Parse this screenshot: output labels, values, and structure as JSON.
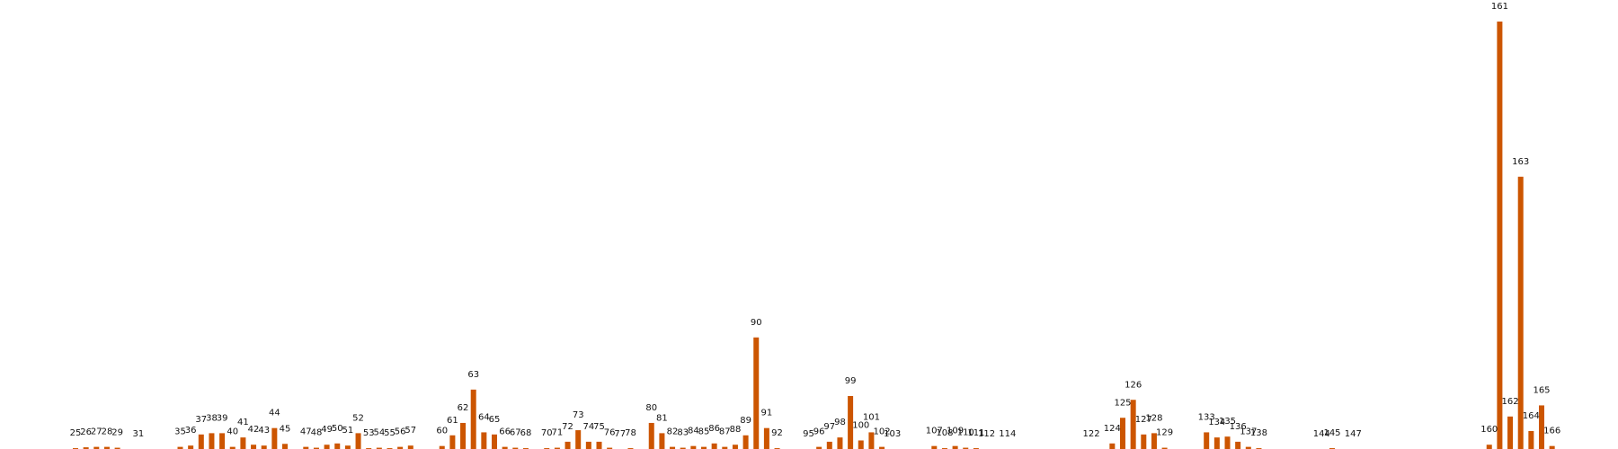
{
  "chart_data": {
    "type": "bar",
    "title": "",
    "xlabel": "",
    "ylabel": "",
    "ylim": [
      0,
      1
    ],
    "grid": false,
    "axes_visible": false,
    "bar_color": "#cc5500",
    "points": [
      {
        "x": 25,
        "label": "25",
        "value": 0.002
      },
      {
        "x": 26,
        "label": "26",
        "value": 0.004
      },
      {
        "x": 27,
        "label": "27",
        "value": 0.005
      },
      {
        "x": 28,
        "label": "28",
        "value": 0.005
      },
      {
        "x": 29,
        "label": "29",
        "value": 0.003
      },
      {
        "x": 31,
        "label": "31",
        "value": 0.0
      },
      {
        "x": 35,
        "label": "35",
        "value": 0.005
      },
      {
        "x": 36,
        "label": "36",
        "value": 0.008
      },
      {
        "x": 37,
        "label": "37",
        "value": 0.034
      },
      {
        "x": 38,
        "label": "38",
        "value": 0.037
      },
      {
        "x": 39,
        "label": "39",
        "value": 0.037
      },
      {
        "x": 40,
        "label": "40",
        "value": 0.005
      },
      {
        "x": 41,
        "label": "41",
        "value": 0.027
      },
      {
        "x": 42,
        "label": "42",
        "value": 0.01
      },
      {
        "x": 43,
        "label": "43",
        "value": 0.008
      },
      {
        "x": 44,
        "label": "44",
        "value": 0.049
      },
      {
        "x": 45,
        "label": "45",
        "value": 0.012
      },
      {
        "x": 47,
        "label": "47",
        "value": 0.005
      },
      {
        "x": 48,
        "label": "48",
        "value": 0.003
      },
      {
        "x": 49,
        "label": "49",
        "value": 0.01
      },
      {
        "x": 50,
        "label": "50",
        "value": 0.013
      },
      {
        "x": 51,
        "label": "51",
        "value": 0.008
      },
      {
        "x": 52,
        "label": "52",
        "value": 0.037
      },
      {
        "x": 53,
        "label": "53",
        "value": 0.002
      },
      {
        "x": 54,
        "label": "54",
        "value": 0.003
      },
      {
        "x": 55,
        "label": "55",
        "value": 0.002
      },
      {
        "x": 56,
        "label": "56",
        "value": 0.005
      },
      {
        "x": 57,
        "label": "57",
        "value": 0.008
      },
      {
        "x": 60,
        "label": "60",
        "value": 0.007
      },
      {
        "x": 61,
        "label": "61",
        "value": 0.032
      },
      {
        "x": 62,
        "label": "62",
        "value": 0.061
      },
      {
        "x": 63,
        "label": "63",
        "value": 0.139
      },
      {
        "x": 64,
        "label": "64",
        "value": 0.039
      },
      {
        "x": 65,
        "label": "65",
        "value": 0.034
      },
      {
        "x": 66,
        "label": "66",
        "value": 0.005
      },
      {
        "x": 67,
        "label": "67",
        "value": 0.003
      },
      {
        "x": 68,
        "label": "68",
        "value": 0.002
      },
      {
        "x": 70,
        "label": "70",
        "value": 0.002
      },
      {
        "x": 71,
        "label": "71",
        "value": 0.003
      },
      {
        "x": 72,
        "label": "72",
        "value": 0.017
      },
      {
        "x": 73,
        "label": "73",
        "value": 0.044
      },
      {
        "x": 74,
        "label": "74",
        "value": 0.017
      },
      {
        "x": 75,
        "label": "75",
        "value": 0.017
      },
      {
        "x": 76,
        "label": "76",
        "value": 0.003
      },
      {
        "x": 77,
        "label": "77",
        "value": 0.0
      },
      {
        "x": 78,
        "label": "78",
        "value": 0.002
      },
      {
        "x": 80,
        "label": "80",
        "value": 0.061
      },
      {
        "x": 81,
        "label": "81",
        "value": 0.037
      },
      {
        "x": 82,
        "label": "82",
        "value": 0.005
      },
      {
        "x": 83,
        "label": "83",
        "value": 0.003
      },
      {
        "x": 84,
        "label": "84",
        "value": 0.007
      },
      {
        "x": 85,
        "label": "85",
        "value": 0.005
      },
      {
        "x": 86,
        "label": "86",
        "value": 0.013
      },
      {
        "x": 87,
        "label": "87",
        "value": 0.005
      },
      {
        "x": 88,
        "label": "88",
        "value": 0.01
      },
      {
        "x": 89,
        "label": "89",
        "value": 0.032
      },
      {
        "x": 90,
        "label": "90",
        "value": 0.261
      },
      {
        "x": 91,
        "label": "91",
        "value": 0.049
      },
      {
        "x": 92,
        "label": "92",
        "value": 0.002
      },
      {
        "x": 95,
        "label": "95",
        "value": 0.0
      },
      {
        "x": 96,
        "label": "96",
        "value": 0.005
      },
      {
        "x": 97,
        "label": "97",
        "value": 0.017
      },
      {
        "x": 98,
        "label": "98",
        "value": 0.027
      },
      {
        "x": 99,
        "label": "99",
        "value": 0.124
      },
      {
        "x": 100,
        "label": "100",
        "value": 0.02
      },
      {
        "x": 101,
        "label": "101",
        "value": 0.039
      },
      {
        "x": 102,
        "label": "102",
        "value": 0.005
      },
      {
        "x": 103,
        "label": "103",
        "value": 0.0
      },
      {
        "x": 107,
        "label": "107",
        "value": 0.007
      },
      {
        "x": 108,
        "label": "108",
        "value": 0.002
      },
      {
        "x": 109,
        "label": "109",
        "value": 0.007
      },
      {
        "x": 110,
        "label": "110",
        "value": 0.003
      },
      {
        "x": 111,
        "label": "111",
        "value": 0.002
      },
      {
        "x": 112,
        "label": "112",
        "value": 0.0
      },
      {
        "x": 114,
        "label": "114",
        "value": 0.0
      },
      {
        "x": 122,
        "label": "122",
        "value": 0.0
      },
      {
        "x": 124,
        "label": "124",
        "value": 0.013
      },
      {
        "x": 125,
        "label": "125",
        "value": 0.073
      },
      {
        "x": 126,
        "label": "126",
        "value": 0.115
      },
      {
        "x": 127,
        "label": "127",
        "value": 0.034
      },
      {
        "x": 128,
        "label": "128",
        "value": 0.037
      },
      {
        "x": 129,
        "label": "129",
        "value": 0.003
      },
      {
        "x": 133,
        "label": "133",
        "value": 0.039
      },
      {
        "x": 134,
        "label": "134",
        "value": 0.027
      },
      {
        "x": 135,
        "label": "135",
        "value": 0.029
      },
      {
        "x": 136,
        "label": "136",
        "value": 0.017
      },
      {
        "x": 137,
        "label": "137",
        "value": 0.005
      },
      {
        "x": 138,
        "label": "138",
        "value": 0.002
      },
      {
        "x": 144,
        "label": "144",
        "value": 0.0
      },
      {
        "x": 145,
        "label": "145",
        "value": 0.002
      },
      {
        "x": 147,
        "label": "147",
        "value": 0.0
      },
      {
        "x": 160,
        "label": "160",
        "value": 0.01
      },
      {
        "x": 161,
        "label": "161",
        "value": 1.0
      },
      {
        "x": 162,
        "label": "162",
        "value": 0.076
      },
      {
        "x": 163,
        "label": "163",
        "value": 0.637
      },
      {
        "x": 164,
        "label": "164",
        "value": 0.042
      },
      {
        "x": 165,
        "label": "165",
        "value": 0.102
      },
      {
        "x": 166,
        "label": "166",
        "value": 0.007
      }
    ]
  }
}
